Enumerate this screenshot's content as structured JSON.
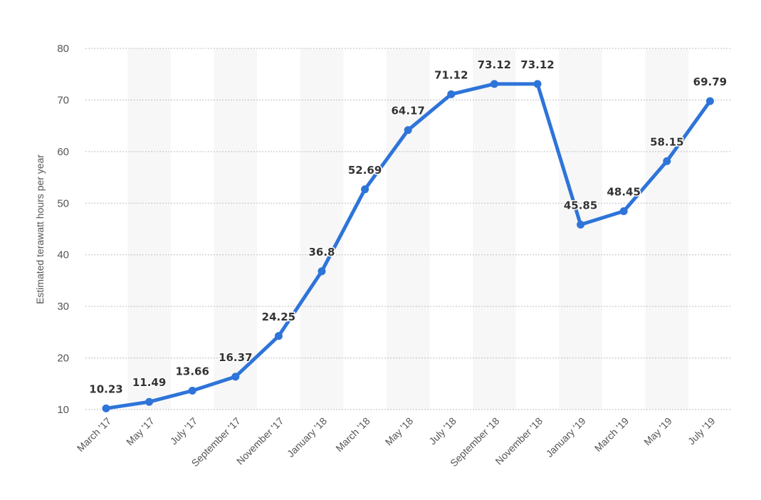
{
  "chart_data": {
    "type": "line",
    "title": "",
    "xlabel": "",
    "ylabel": "Estimated terawatt hours per year",
    "categories": [
      "March '17",
      "May '17",
      "July '17",
      "September '17",
      "November '17",
      "January '18",
      "March '18",
      "May '18",
      "July '18",
      "September '18",
      "November '18",
      "January '19",
      "March '19",
      "May '19",
      "July '19"
    ],
    "series": [
      {
        "values": [
          10.23,
          11.49,
          13.66,
          16.37,
          24.25,
          36.8,
          52.69,
          64.17,
          71.12,
          73.12,
          73.12,
          45.85,
          48.45,
          58.15,
          69.79
        ]
      }
    ],
    "value_labels": [
      "10.23",
      "11.49",
      "13.66",
      "16.37",
      "24.25",
      "36.8",
      "52.69",
      "64.17",
      "71.12",
      "73.12",
      "73.12",
      "45.85",
      "48.45",
      "58.15",
      "69.79"
    ],
    "ylim": [
      10,
      80
    ],
    "yticks": [
      10,
      20,
      30,
      40,
      50,
      60,
      70,
      80
    ],
    "grid": true,
    "legend": "none",
    "colors": {
      "line": "#2e74d9",
      "band": "#f7f7f7",
      "grid": "#bfbfbf",
      "text": "#555555",
      "label": "#333333"
    }
  }
}
